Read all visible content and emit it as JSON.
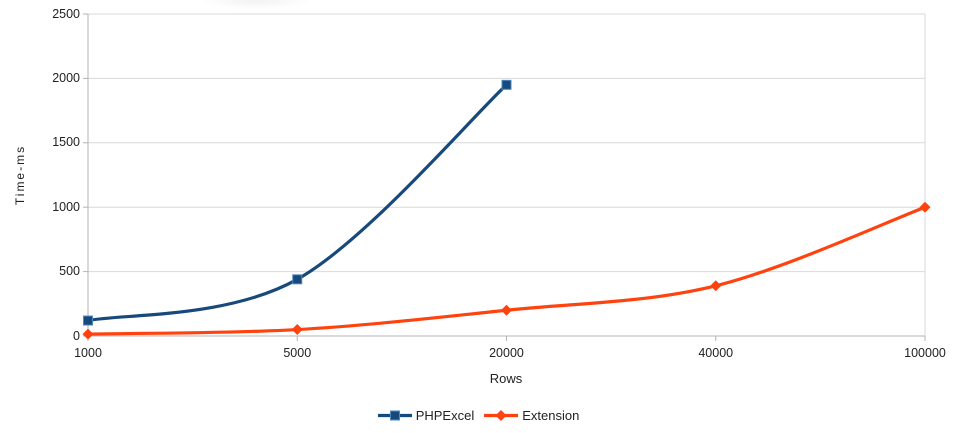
{
  "chart_data": {
    "type": "line",
    "title": "",
    "xlabel": "Rows",
    "ylabel": "Time-ms",
    "x_scale": "category",
    "categories": [
      "1000",
      "5000",
      "20000",
      "40000",
      "100000"
    ],
    "y_ticks": [
      "0",
      "500",
      "1000",
      "1500",
      "2000",
      "2500"
    ],
    "ylim": [
      0,
      2500
    ],
    "grid": true,
    "legend_position": "bottom",
    "line_style": "smooth",
    "series": [
      {
        "name": "PHPExcel",
        "color": "#17497B",
        "marker": "square",
        "marker_border": "#4E88C4",
        "values": [
          120,
          440,
          1950,
          null,
          null
        ]
      },
      {
        "name": "Extension",
        "color": "#FF420E",
        "marker": "diamond",
        "marker_border": "#FF420E",
        "values": [
          15,
          50,
          200,
          390,
          1000
        ]
      }
    ]
  },
  "colors": {
    "gridline": "#D9D9D9",
    "axis": "#B3B3B3",
    "text": "#222222",
    "background": "#FFFFFF"
  }
}
